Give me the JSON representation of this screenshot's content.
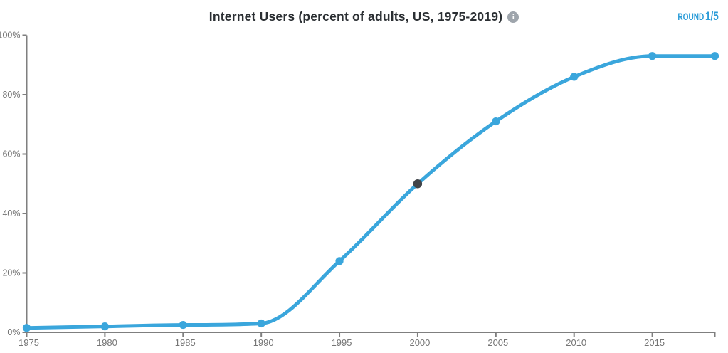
{
  "header": {
    "title": "Internet Users (percent of adults, US, 1975-2019)",
    "info_icon_glyph": "i",
    "round_label": "ROUND",
    "round_value": "1/5"
  },
  "colors": {
    "line": "#3aa6dc",
    "point": "#3aa6dc",
    "highlight_point": "#414449",
    "axis": "#7f7f7f",
    "tick_label": "#757575",
    "title_text": "#2b2f33",
    "round_badge": "#2b9cd8",
    "info_icon_bg": "#9ea5ac",
    "background": "#ffffff"
  },
  "chart_data": {
    "type": "line",
    "title": "Internet Users (percent of adults, US, 1975-2019)",
    "xlabel": "",
    "ylabel": "",
    "x": [
      1975,
      1980,
      1985,
      1990,
      1995,
      2000,
      2005,
      2010,
      2015,
      2019
    ],
    "values": [
      1.5,
      2,
      2.5,
      3,
      24,
      50,
      71,
      86,
      93,
      93
    ],
    "series_name": "Internet users (% of adults)",
    "highlight_index": 5,
    "highlight_x": 2000,
    "highlight_value": 50,
    "xlim": [
      1975,
      2019
    ],
    "ylim": [
      0,
      100
    ],
    "x_ticks": [
      1975,
      1980,
      1985,
      1990,
      1995,
      2000,
      2005,
      2010,
      2015
    ],
    "x_end_tick": 2019,
    "y_ticks": [
      0,
      20,
      40,
      60,
      80,
      100
    ],
    "y_tick_suffix": "%",
    "grid": false,
    "legend": false,
    "curve": "monotone"
  }
}
